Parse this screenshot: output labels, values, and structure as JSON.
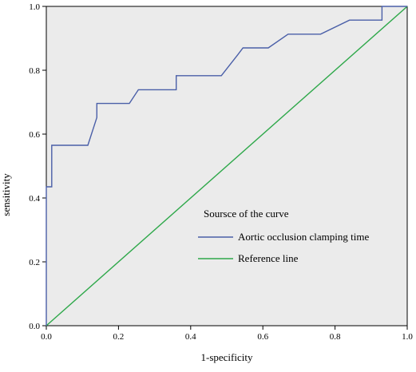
{
  "chart_data": {
    "type": "line",
    "title": "",
    "xlabel": "1-specificity",
    "ylabel": "sensitivity",
    "xlim": [
      0.0,
      1.0
    ],
    "ylim": [
      0.0,
      1.0
    ],
    "x_ticks": [
      "0.0",
      "0.2",
      "0.4",
      "0.6",
      "0.8",
      "1.0"
    ],
    "y_ticks": [
      "0.0",
      "0.2",
      "0.4",
      "0.6",
      "0.8",
      "1.0"
    ],
    "grid": false,
    "legend": {
      "title": "Soursce of the curve",
      "placement": "lower-right",
      "entries": [
        {
          "label": "Aortic occlusion clamping time",
          "color": "#4a5fa8"
        },
        {
          "label": "Reference line",
          "color": "#2ea84a"
        }
      ]
    },
    "series": [
      {
        "name": "Aortic occlusion clamping time",
        "color": "#4a5fa8",
        "points": [
          [
            0.0,
            0.0
          ],
          [
            0.0,
            0.435
          ],
          [
            0.015,
            0.435
          ],
          [
            0.015,
            0.565
          ],
          [
            0.115,
            0.565
          ],
          [
            0.14,
            0.652
          ],
          [
            0.14,
            0.696
          ],
          [
            0.23,
            0.696
          ],
          [
            0.255,
            0.739
          ],
          [
            0.36,
            0.739
          ],
          [
            0.36,
            0.783
          ],
          [
            0.485,
            0.783
          ],
          [
            0.53,
            0.848
          ],
          [
            0.545,
            0.87
          ],
          [
            0.615,
            0.87
          ],
          [
            0.67,
            0.913
          ],
          [
            0.76,
            0.913
          ],
          [
            0.84,
            0.957
          ],
          [
            0.93,
            0.957
          ],
          [
            0.93,
            1.0
          ],
          [
            1.0,
            1.0
          ]
        ]
      },
      {
        "name": "Reference line",
        "color": "#2ea84a",
        "points": [
          [
            0.0,
            0.0
          ],
          [
            1.0,
            1.0
          ]
        ]
      }
    ],
    "plot_background": "#ebebeb"
  }
}
